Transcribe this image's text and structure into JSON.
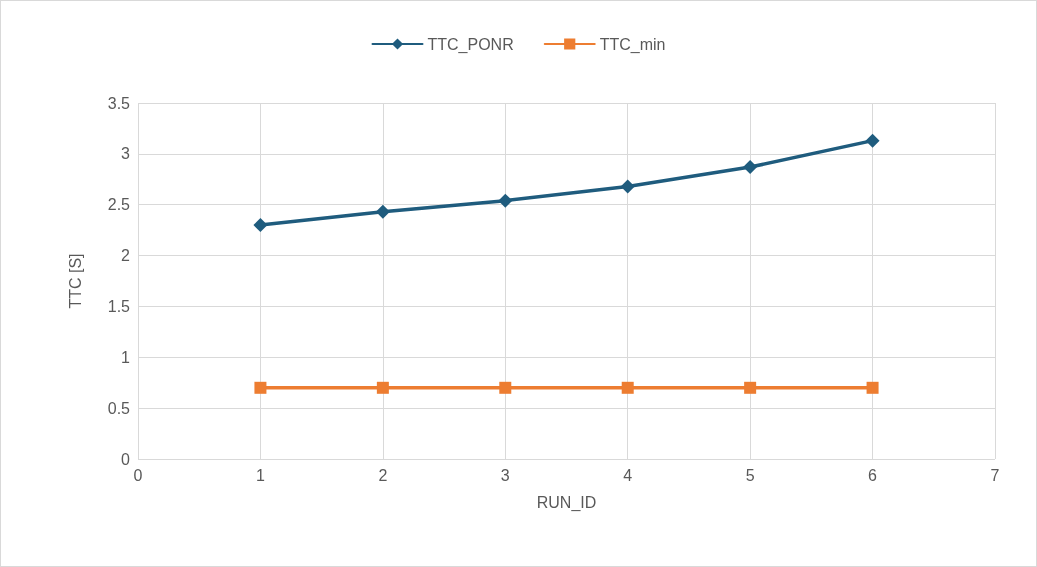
{
  "chart_data": {
    "type": "line",
    "xlabel": "RUN_ID",
    "ylabel": "TTC [S]",
    "x": [
      1,
      2,
      3,
      4,
      5,
      6
    ],
    "series": [
      {
        "name": "TTC_PONR",
        "color": "#1f5c7e",
        "marker": "diamond",
        "values": [
          2.3,
          2.43,
          2.54,
          2.68,
          2.87,
          3.13
        ]
      },
      {
        "name": "TTC_min",
        "color": "#ed7d31",
        "marker": "square",
        "values": [
          0.7,
          0.7,
          0.7,
          0.7,
          0.7,
          0.7
        ]
      }
    ],
    "xlim": [
      0,
      7
    ],
    "xticks": [
      0,
      1,
      2,
      3,
      4,
      5,
      6,
      7
    ],
    "ylim": [
      0,
      3.5
    ],
    "yticks": [
      0,
      0.5,
      1,
      1.5,
      2,
      2.5,
      3,
      3.5
    ],
    "grid": true,
    "legend": "top",
    "line_style": "solid"
  }
}
